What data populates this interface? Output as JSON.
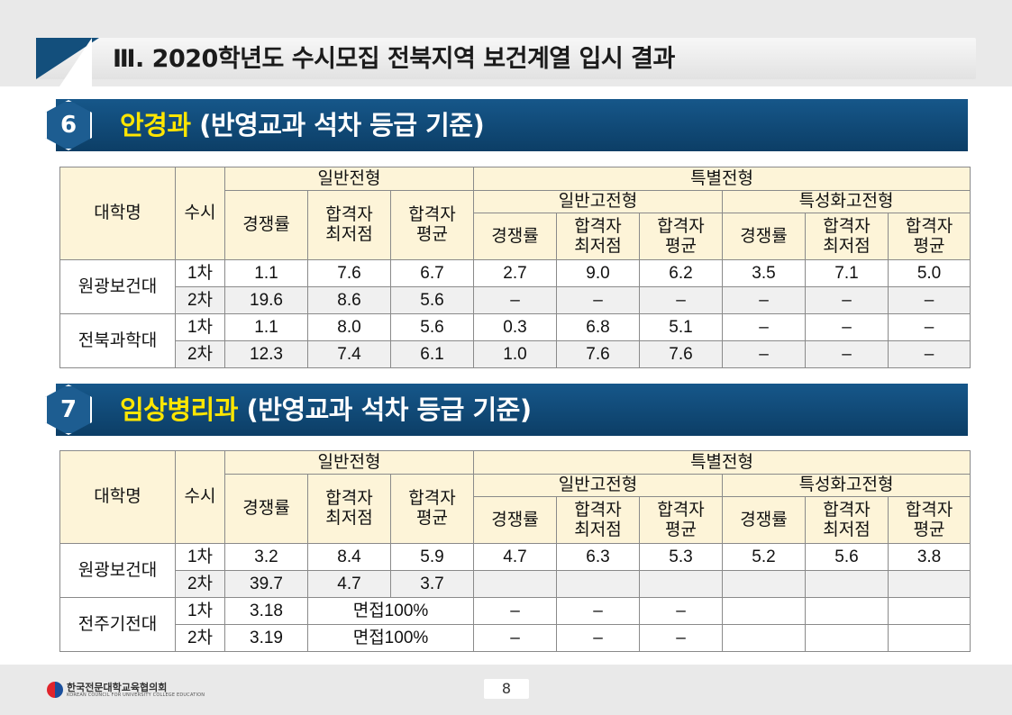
{
  "header": {
    "title": "Ⅲ. 2020학년도 수시모집 전북지역 보건계열 입시 결과"
  },
  "headers": {
    "university": "대학명",
    "susi": "수시",
    "general": "일반전형",
    "special": "특별전형",
    "sub_general_hs": "일반고전형",
    "sub_specialized_hs": "특성화고전형",
    "competition": "경쟁률",
    "min_score": "합격자\n최저점",
    "avg_score": "합격자\n평균"
  },
  "sections": [
    {
      "number": "6",
      "name": "안경과",
      "criteria": "(반영교과  석차 등급 기준)",
      "rows": [
        {
          "univ": "원광보건대",
          "round": "1차",
          "g_comp": "1.1",
          "g_min": "7.6",
          "g_avg": "6.7",
          "h_comp": "2.7",
          "h_min": "9.0",
          "h_avg": "6.2",
          "s_comp": "3.5",
          "s_min": "7.1",
          "s_avg": "5.0"
        },
        {
          "univ": "원광보건대",
          "round": "2차",
          "g_comp": "19.6",
          "g_min": "8.6",
          "g_avg": "5.6",
          "h_comp": "–",
          "h_min": "–",
          "h_avg": "–",
          "s_comp": "–",
          "s_min": "–",
          "s_avg": "–"
        },
        {
          "univ": "전북과학대",
          "round": "1차",
          "g_comp": "1.1",
          "g_min": "8.0",
          "g_avg": "5.6",
          "h_comp": "0.3",
          "h_min": "6.8",
          "h_avg": "5.1",
          "s_comp": "–",
          "s_min": "–",
          "s_avg": "–"
        },
        {
          "univ": "전북과학대",
          "round": "2차",
          "g_comp": "12.3",
          "g_min": "7.4",
          "g_avg": "6.1",
          "h_comp": "1.0",
          "h_min": "7.6",
          "h_avg": "7.6",
          "s_comp": "–",
          "s_min": "–",
          "s_avg": "–"
        }
      ]
    },
    {
      "number": "7",
      "name": "임상병리과",
      "criteria": "(반영교과  석차 등급 기준)",
      "rows": [
        {
          "univ": "원광보건대",
          "round": "1차",
          "g_comp": "3.2",
          "g_min": "8.4",
          "g_avg": "5.9",
          "h_comp": "4.7",
          "h_min": "6.3",
          "h_avg": "5.3",
          "s_comp": "5.2",
          "s_min": "5.6",
          "s_avg": "3.8"
        },
        {
          "univ": "원광보건대",
          "round": "2차",
          "g_comp": "39.7",
          "g_min": "4.7",
          "g_avg": "3.7",
          "h_comp": "",
          "h_min": "",
          "h_avg": "",
          "s_comp": "",
          "s_min": "",
          "s_avg": ""
        },
        {
          "univ": "전주기전대",
          "round": "1차",
          "g_comp": "3.18",
          "interview": "면접100%",
          "h_comp": "–",
          "h_min": "–",
          "h_avg": "–",
          "s_comp": "",
          "s_min": "",
          "s_avg": ""
        },
        {
          "univ": "전주기전대",
          "round": "2차",
          "g_comp": "3.19",
          "interview": "면접100%",
          "h_comp": "–",
          "h_min": "–",
          "h_avg": "–",
          "s_comp": "",
          "s_min": "",
          "s_avg": ""
        }
      ]
    }
  ],
  "footer": {
    "org_name": "한국전문대학교육협의회",
    "org_english": "KOREAN COUNCIL FOR UNIVERSITY COLLEGE EDUCATION",
    "page_number": "8"
  }
}
